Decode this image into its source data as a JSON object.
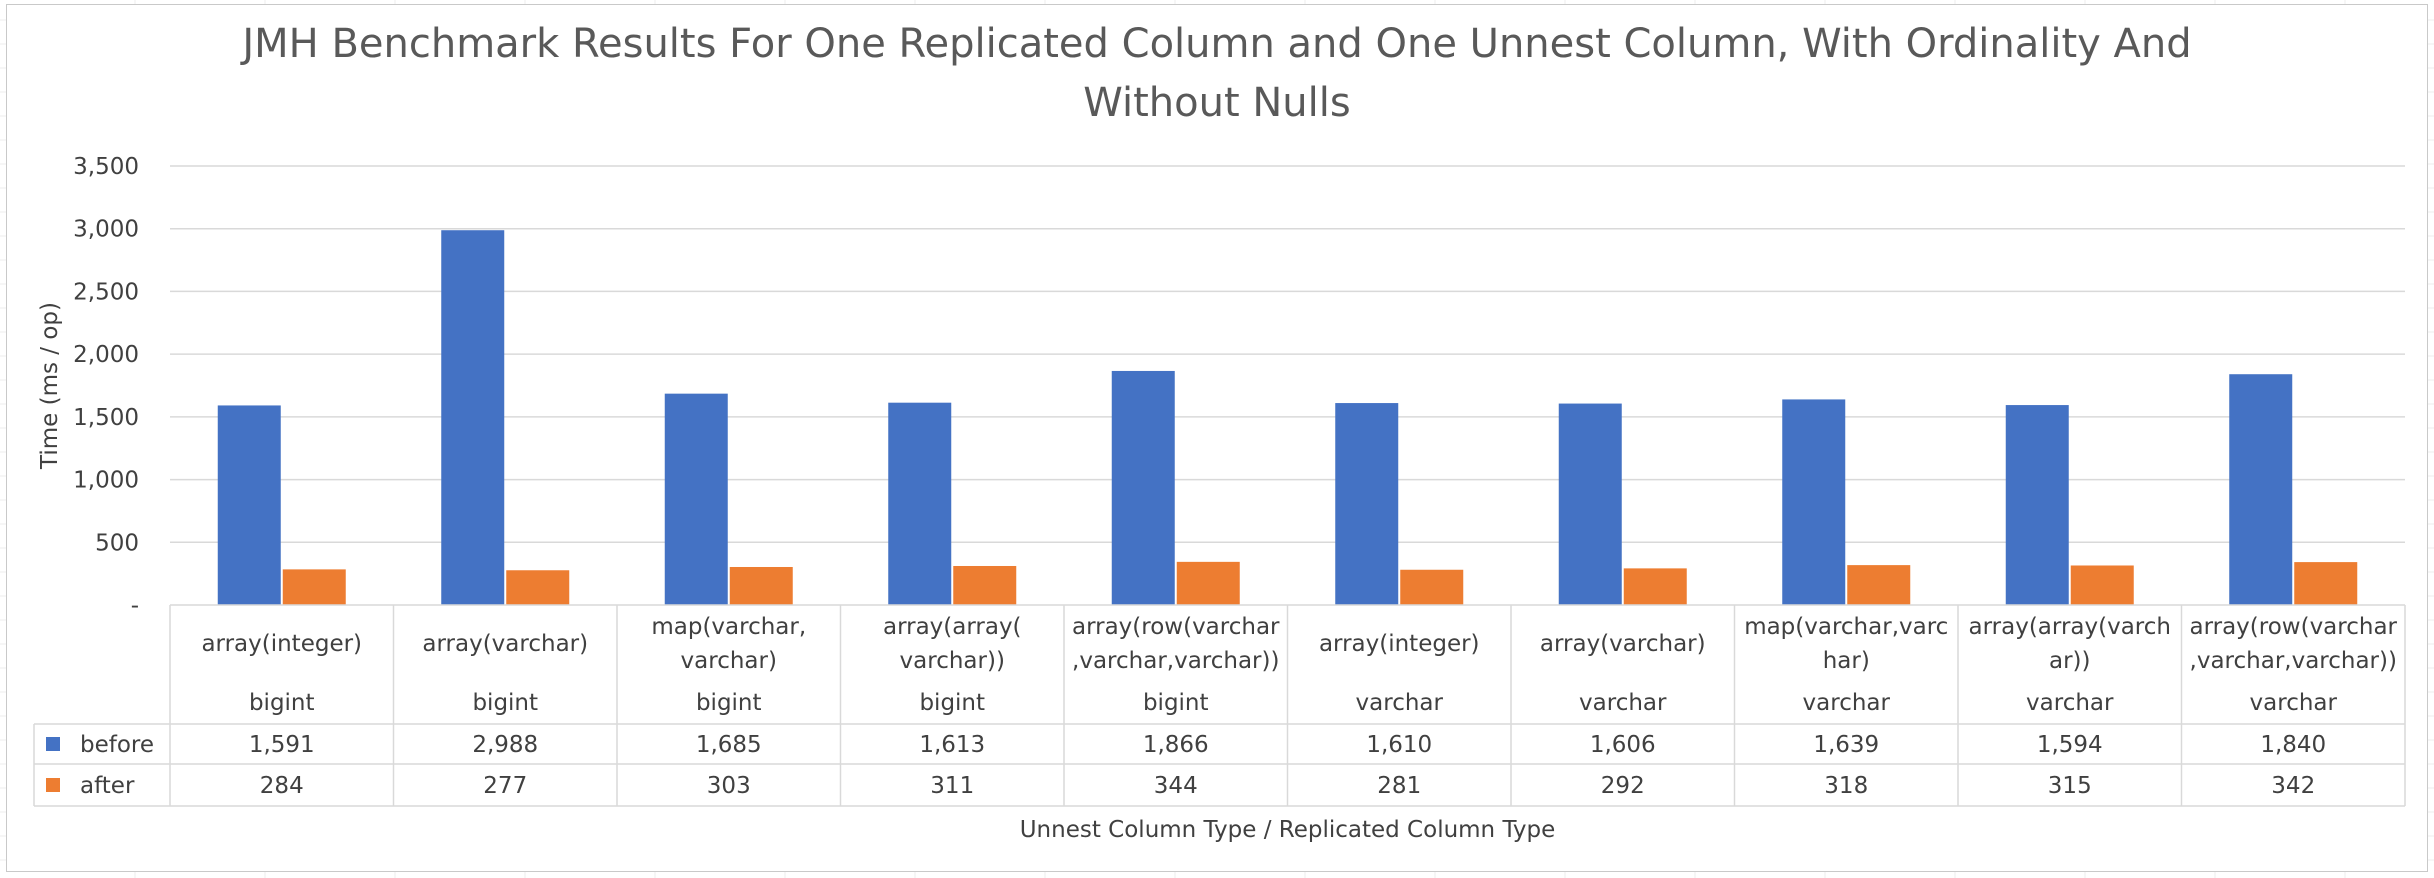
{
  "chart_data": {
    "type": "bar",
    "title": "JMH Benchmark Results For One Replicated Column and One Unnest Column, With Ordinality And Without Nulls",
    "title_lines": [
      "JMH Benchmark Results For One Replicated Column and One Unnest Column, With Ordinality And",
      "Without Nulls"
    ],
    "xlabel": "Unnest Column Type /  Replicated Column Type",
    "ylabel": "Time (ms / op)",
    "ylim": [
      0,
      3500
    ],
    "yticks": [
      0,
      500,
      1000,
      1500,
      2000,
      2500,
      3000,
      3500
    ],
    "ytick_labels": [
      "-",
      "500",
      "1,000",
      "1,500",
      "2,000",
      "2,500",
      "3,000",
      "3,500"
    ],
    "grid": true,
    "legend": "data-table",
    "categories": [
      {
        "unnest": [
          "array(integer)"
        ],
        "replicated": "bigint"
      },
      {
        "unnest": [
          "array(varchar)"
        ],
        "replicated": "bigint"
      },
      {
        "unnest": [
          "map(varchar,",
          "varchar)"
        ],
        "replicated": "bigint"
      },
      {
        "unnest": [
          "array(array(",
          "varchar))"
        ],
        "replicated": "bigint"
      },
      {
        "unnest": [
          "array(row(varchar",
          ",varchar,varchar))"
        ],
        "replicated": "bigint"
      },
      {
        "unnest": [
          "array(integer)"
        ],
        "replicated": "varchar"
      },
      {
        "unnest": [
          "array(varchar)"
        ],
        "replicated": "varchar"
      },
      {
        "unnest": [
          "map(varchar,varc",
          "har)"
        ],
        "replicated": "varchar"
      },
      {
        "unnest": [
          "array(array(varch",
          "ar))"
        ],
        "replicated": "varchar"
      },
      {
        "unnest": [
          "array(row(varchar",
          ",varchar,varchar))"
        ],
        "replicated": "varchar"
      }
    ],
    "series": [
      {
        "name": "before",
        "color": "#4472C4",
        "values": [
          1591,
          2988,
          1685,
          1613,
          1866,
          1610,
          1606,
          1639,
          1594,
          1840
        ],
        "labels": [
          "1,591",
          "2,988",
          "1,685",
          "1,613",
          "1,866",
          "1,610",
          "1,606",
          "1,639",
          "1,594",
          "1,840"
        ]
      },
      {
        "name": "after",
        "color": "#ED7D31",
        "values": [
          284,
          277,
          303,
          311,
          344,
          281,
          292,
          318,
          315,
          342
        ],
        "labels": [
          "284",
          "277",
          "303",
          "311",
          "344",
          "281",
          "292",
          "318",
          "315",
          "342"
        ]
      }
    ]
  }
}
